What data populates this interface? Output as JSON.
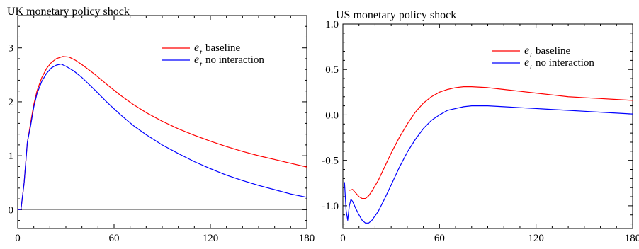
{
  "colors": {
    "baseline": "#ff0000",
    "no_interaction": "#0000ff",
    "zero_line": "#8c8c8c",
    "axes": "#000000"
  },
  "chart_data": [
    {
      "type": "line",
      "title": "UK monetary policy shock",
      "xlabel": "",
      "ylabel": "",
      "xlim": [
        0,
        180
      ],
      "ylim": [
        -0.35,
        3.6
      ],
      "x_ticks": [
        0,
        60,
        120,
        180
      ],
      "x_tick_labels": [
        "0",
        "60",
        "120",
        "180"
      ],
      "y_ticks": [
        0,
        1,
        2,
        3
      ],
      "y_tick_labels": [
        "0",
        "1",
        "2",
        "3"
      ],
      "zero_line": true,
      "grid": false,
      "legend": "top-right",
      "series": [
        {
          "name": "baseline",
          "symbol": "e",
          "subscript": "t",
          "color": "#ff0000",
          "points": [
            [
              0,
              0
            ],
            [
              2,
              0
            ],
            [
              4,
              0.5
            ],
            [
              6,
              1.25
            ],
            [
              8,
              1.6
            ],
            [
              10,
              1.95
            ],
            [
              12,
              2.2
            ],
            [
              15,
              2.45
            ],
            [
              18,
              2.62
            ],
            [
              21,
              2.73
            ],
            [
              24,
              2.8
            ],
            [
              28,
              2.84
            ],
            [
              32,
              2.83
            ],
            [
              36,
              2.77
            ],
            [
              40,
              2.69
            ],
            [
              48,
              2.51
            ],
            [
              56,
              2.31
            ],
            [
              64,
              2.12
            ],
            [
              72,
              1.95
            ],
            [
              80,
              1.8
            ],
            [
              90,
              1.64
            ],
            [
              100,
              1.5
            ],
            [
              110,
              1.38
            ],
            [
              120,
              1.27
            ],
            [
              130,
              1.17
            ],
            [
              140,
              1.08
            ],
            [
              150,
              1.0
            ],
            [
              160,
              0.93
            ],
            [
              170,
              0.86
            ],
            [
              180,
              0.79
            ]
          ]
        },
        {
          "name": "no interaction",
          "symbol": "e",
          "subscript": "t",
          "color": "#0000ff",
          "points": [
            [
              0,
              0
            ],
            [
              2,
              0
            ],
            [
              4,
              0.5
            ],
            [
              6,
              1.25
            ],
            [
              8,
              1.55
            ],
            [
              10,
              1.9
            ],
            [
              12,
              2.15
            ],
            [
              15,
              2.38
            ],
            [
              18,
              2.53
            ],
            [
              21,
              2.63
            ],
            [
              24,
              2.68
            ],
            [
              27,
              2.7
            ],
            [
              30,
              2.66
            ],
            [
              35,
              2.57
            ],
            [
              40,
              2.45
            ],
            [
              48,
              2.22
            ],
            [
              56,
              1.98
            ],
            [
              64,
              1.76
            ],
            [
              72,
              1.56
            ],
            [
              80,
              1.39
            ],
            [
              90,
              1.2
            ],
            [
              100,
              1.04
            ],
            [
              110,
              0.89
            ],
            [
              120,
              0.76
            ],
            [
              130,
              0.64
            ],
            [
              140,
              0.54
            ],
            [
              150,
              0.45
            ],
            [
              160,
              0.37
            ],
            [
              170,
              0.29
            ],
            [
              180,
              0.23
            ]
          ]
        }
      ]
    },
    {
      "type": "line",
      "title": "US monetary policy shock",
      "xlabel": "",
      "ylabel": "",
      "xlim": [
        0,
        180
      ],
      "ylim": [
        -1.25,
        1.0
      ],
      "x_ticks": [
        0,
        60,
        120,
        180
      ],
      "x_tick_labels": [
        "0",
        "60",
        "120",
        "180"
      ],
      "y_ticks": [
        -1.0,
        -0.5,
        0.0,
        0.5,
        1.0
      ],
      "y_tick_labels": [
        "-1.0",
        "-0.5",
        "0.0",
        "0.5",
        "1.0"
      ],
      "zero_line": true,
      "grid": false,
      "legend": "top-right",
      "series": [
        {
          "name": "baseline",
          "symbol": "e",
          "subscript": "t",
          "color": "#ff0000",
          "points": [
            [
              4,
              -0.83
            ],
            [
              6,
              -0.82
            ],
            [
              8,
              -0.86
            ],
            [
              10,
              -0.9
            ],
            [
              12,
              -0.92
            ],
            [
              14,
              -0.92
            ],
            [
              16,
              -0.89
            ],
            [
              18,
              -0.84
            ],
            [
              22,
              -0.72
            ],
            [
              26,
              -0.57
            ],
            [
              30,
              -0.42
            ],
            [
              35,
              -0.25
            ],
            [
              40,
              -0.1
            ],
            [
              45,
              0.03
            ],
            [
              50,
              0.13
            ],
            [
              55,
              0.2
            ],
            [
              60,
              0.25
            ],
            [
              65,
              0.28
            ],
            [
              70,
              0.3
            ],
            [
              75,
              0.31
            ],
            [
              80,
              0.31
            ],
            [
              90,
              0.3
            ],
            [
              100,
              0.28
            ],
            [
              110,
              0.26
            ],
            [
              120,
              0.24
            ],
            [
              130,
              0.22
            ],
            [
              140,
              0.2
            ],
            [
              150,
              0.19
            ],
            [
              160,
              0.18
            ],
            [
              170,
              0.17
            ],
            [
              180,
              0.16
            ]
          ]
        },
        {
          "name": "no interaction",
          "symbol": "e",
          "subscript": "t",
          "color": "#0000ff",
          "points": [
            [
              1,
              -0.74
            ],
            [
              2,
              -1.05
            ],
            [
              3,
              -1.16
            ],
            [
              4,
              -1.0
            ],
            [
              5,
              -0.93
            ],
            [
              6,
              -0.95
            ],
            [
              8,
              -1.03
            ],
            [
              10,
              -1.1
            ],
            [
              12,
              -1.16
            ],
            [
              14,
              -1.19
            ],
            [
              16,
              -1.19
            ],
            [
              18,
              -1.16
            ],
            [
              22,
              -1.06
            ],
            [
              26,
              -0.92
            ],
            [
              30,
              -0.77
            ],
            [
              35,
              -0.58
            ],
            [
              40,
              -0.41
            ],
            [
              45,
              -0.27
            ],
            [
              50,
              -0.15
            ],
            [
              55,
              -0.06
            ],
            [
              60,
              0.0
            ],
            [
              65,
              0.05
            ],
            [
              70,
              0.07
            ],
            [
              75,
              0.09
            ],
            [
              80,
              0.1
            ],
            [
              90,
              0.1
            ],
            [
              100,
              0.09
            ],
            [
              110,
              0.08
            ],
            [
              120,
              0.07
            ],
            [
              130,
              0.06
            ],
            [
              140,
              0.05
            ],
            [
              150,
              0.04
            ],
            [
              160,
              0.03
            ],
            [
              170,
              0.02
            ],
            [
              180,
              0.01
            ]
          ]
        }
      ]
    }
  ]
}
